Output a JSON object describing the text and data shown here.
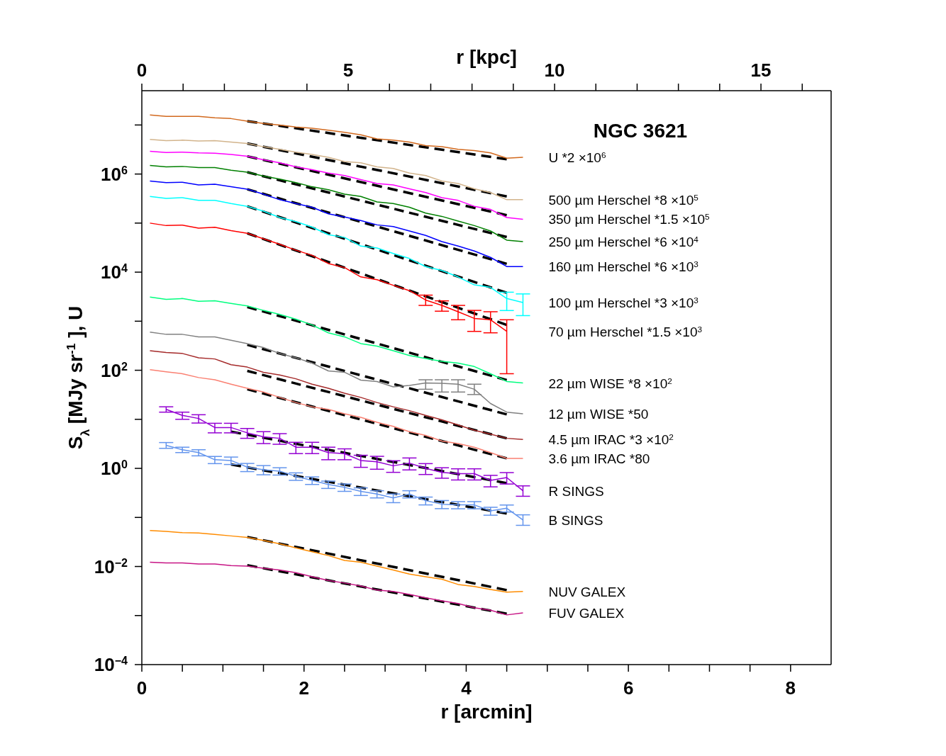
{
  "chart_data": {
    "type": "line",
    "title": "NGC 3621",
    "xlabel": "r [arcmin]",
    "x2label": "r [kpc]",
    "ylabel": "S$_{λ}$ [MJy sr$^{-1}$], U",
    "log": "y",
    "grid": false,
    "legend": false,
    "marker": "none",
    "x": [
      0.1,
      0.3,
      0.5,
      0.7,
      0.9,
      1.1,
      1.3,
      1.5,
      1.7,
      1.9,
      2.1,
      2.3,
      2.5,
      2.7,
      2.9,
      3.1,
      3.3,
      3.5,
      3.7,
      3.9,
      4.1,
      4.3,
      4.5,
      4.7
    ],
    "xlim": [
      0,
      8.5
    ],
    "xticks": [
      0,
      {
        "value": 0.5,
        "label": null
      },
      {
        "value": 1,
        "label": null
      },
      {
        "value": 1.5,
        "label": null
      },
      2,
      {
        "value": 2.5,
        "label": null
      },
      {
        "value": 3,
        "label": null
      },
      {
        "value": 3.5,
        "label": null
      },
      4,
      {
        "value": 4.5,
        "label": null
      },
      {
        "value": 5,
        "label": null
      },
      {
        "value": 5.5,
        "label": null
      },
      6,
      {
        "value": 6.5,
        "label": null
      },
      {
        "value": 7,
        "label": null
      },
      {
        "value": 7.5,
        "label": null
      },
      8
    ],
    "x2lim": [
      0,
      16.7
    ],
    "x2ticks": [
      0,
      {
        "value": 1,
        "label": null
      },
      {
        "value": 2,
        "label": null
      },
      {
        "value": 3,
        "label": null
      },
      {
        "value": 4,
        "label": null
      },
      5,
      {
        "value": 6,
        "label": null
      },
      {
        "value": 7,
        "label": null
      },
      {
        "value": 8,
        "label": null
      },
      {
        "value": 9,
        "label": null
      },
      10,
      {
        "value": 11,
        "label": null
      },
      {
        "value": 12,
        "label": null
      },
      {
        "value": 13,
        "label": null
      },
      {
        "value": 14,
        "label": null
      },
      15,
      {
        "value": 16,
        "label": null
      }
    ],
    "ylim": [
      0.0001,
      50000000
    ],
    "yticks": [
      {
        "value": 0.0001,
        "label": "10$^{−4}$"
      },
      {
        "value": 0.001,
        "label": null
      },
      {
        "value": 0.01,
        "label": "10$^{−2}$"
      },
      {
        "value": 0.1,
        "label": null
      },
      {
        "value": 1,
        "label": "10$^{0}$"
      },
      {
        "value": 10,
        "label": null
      },
      {
        "value": 100,
        "label": "10$^{2}$"
      },
      {
        "value": 1000,
        "label": null
      },
      {
        "value": 10000,
        "label": "10$^{4}$"
      },
      {
        "value": 100000,
        "label": null
      },
      {
        "value": 1000000,
        "label": "10$^{6}$"
      },
      {
        "value": 10000000,
        "label": null
      }
    ],
    "series": [
      {
        "name": "U *2 ×10$^{6}$",
        "color": "#d2691e",
        "values": [
          16000000.0,
          15000000.0,
          15000000.0,
          15000000.0,
          14000000.0,
          13500000.0,
          12000000.0,
          10700000.0,
          10000000.0,
          9100000.0,
          8600000.0,
          7800000.0,
          7100000.0,
          6300000.0,
          5200000.0,
          4900000.0,
          4500000.0,
          3800000.0,
          3600000.0,
          3200000.0,
          3000000.0,
          2700000.0,
          2100000.0,
          2200000.0
        ]
      },
      {
        "name": "500 µm Herschel *8 ×10$^{5}$",
        "color": "#d2b48c",
        "values": [
          5100000.0,
          4800000.0,
          4900000.0,
          4700000.0,
          4800000.0,
          4500000.0,
          4200000.0,
          3600000.0,
          3200000.0,
          2800000.0,
          2500000.0,
          2200000.0,
          1800000.0,
          1700000.0,
          1400000.0,
          1300000.0,
          1050000.0,
          930000.0,
          720000.0,
          640000.0,
          500000.0,
          420000.0,
          300000.0,
          300000.0
        ]
      },
      {
        "name": "350 µm Herschel *1.5 ×10$^{5}$",
        "color": "#ff00ff",
        "values": [
          2900000.0,
          2750000.0,
          2800000.0,
          2700000.0,
          2650000.0,
          2500000.0,
          2300000.0,
          1950000.0,
          1700000.0,
          1400000.0,
          1230000.0,
          1050000.0,
          930000.0,
          770000.0,
          640000.0,
          600000.0,
          500000.0,
          420000.0,
          330000.0,
          290000.0,
          220000.0,
          190000.0,
          130000.0,
          120000.0
        ]
      },
      {
        "name": "250 µm Herschel *6 ×10$^{4}$",
        "color": "#008000",
        "values": [
          1500000.0,
          1400000.0,
          1430000.0,
          1350000.0,
          1350000.0,
          1200000.0,
          1090000.0,
          910000.0,
          790000.0,
          670000.0,
          550000.0,
          480000.0,
          390000.0,
          350000.0,
          270000.0,
          250000.0,
          210000.0,
          160000.0,
          137000.0,
          110000.0,
          89000.0,
          69000.0,
          45000.0,
          42000.0
        ]
      },
      {
        "name": "160 µm Herschel *6 ×10$^{3}$",
        "color": "#0000ff",
        "values": [
          720000.0,
          670000.0,
          680000.0,
          600000.0,
          620000.0,
          550000.0,
          490000.0,
          390000.0,
          300000.0,
          250000.0,
          210000.0,
          155000.0,
          133000.0,
          113000.0,
          92000.0,
          85000.0,
          69000.0,
          56000.0,
          42000.0,
          34000.0,
          27000.0,
          20000.0,
          13000.0,
          13000.0
        ]
      },
      {
        "name": "100 µm Herschel *3 ×10$^{3}$",
        "color": "#00ffff",
        "values": [
          350000.0,
          320000.0,
          330000.0,
          290000.0,
          290000.0,
          250000.0,
          220000.0,
          175000.0,
          130000.0,
          107000.0,
          83000.0,
          58000.0,
          51000.0,
          34000.0,
          31000.0,
          24000.0,
          19000.0,
          13000.0,
          10800.0,
          8000.0,
          5500.0,
          4900.0,
          2900.0,
          2400.0
        ],
        "errors": [
          null,
          null,
          null,
          null,
          null,
          null,
          null,
          null,
          null,
          null,
          null,
          null,
          null,
          null,
          null,
          null,
          null,
          null,
          null,
          null,
          null,
          null,
          [
            1650,
            3900
          ],
          [
            1300,
            3600
          ]
        ]
      },
      {
        "name": "70 µm Herschel *1.5 ×10$^{3}$",
        "color": "#ff0000",
        "values": [
          100000.0,
          89000.0,
          91000.0,
          79000.0,
          82000.0,
          70000.0,
          62000.0,
          48000.0,
          37000.0,
          28000.0,
          22000.0,
          15000.0,
          12400.0,
          8000.0,
          7000.0,
          5400.0,
          4200.0,
          2700.0,
          2100.0,
          1560,
          1140,
          1070,
          620,
          null
        ],
        "errors": [
          null,
          null,
          null,
          null,
          null,
          null,
          null,
          null,
          null,
          null,
          null,
          null,
          null,
          null,
          null,
          null,
          null,
          [
            2100,
            3400
          ],
          [
            1600,
            2600
          ],
          [
            1070,
            2100
          ],
          [
            620,
            1660
          ],
          [
            580,
            1560
          ],
          [
            85,
            1070
          ],
          null
        ]
      },
      {
        "name": "22 µm WISE *8 ×10$^{2}$",
        "color": "#00ff7f",
        "values": [
          3100,
          2800,
          2900,
          2550,
          2600,
          2300,
          2050,
          1660,
          1380,
          1100,
          840,
          580,
          480,
          350,
          310,
          250,
          200,
          173,
          152,
          140,
          119,
          85,
          59,
          55
        ]
      },
      {
        "name": "12 µm WISE *50",
        "color": "#808080",
        "values": [
          600,
          540,
          540,
          480,
          480,
          410,
          350,
          290,
          220,
          180,
          140,
          97,
          91,
          63,
          59,
          46,
          49,
          55,
          54,
          52,
          41,
          21,
          14,
          13
        ],
        "errors": [
          null,
          null,
          null,
          null,
          null,
          null,
          null,
          null,
          null,
          null,
          null,
          null,
          null,
          null,
          null,
          null,
          null,
          [
            41,
            64
          ],
          [
            36,
            64
          ],
          [
            36,
            64
          ],
          [
            32,
            52
          ],
          null,
          null,
          null
        ]
      },
      {
        "name": "4.5 µm IRAC *3 ×10$^{2}$",
        "color": "#a52a2a",
        "values": [
          250,
          230,
          220,
          180,
          170,
          130,
          116,
          91,
          80,
          67,
          52,
          43,
          34,
          28,
          22,
          18,
          15,
          12,
          9.8,
          7.7,
          6.0,
          5.0,
          4.1,
          3.9
        ]
      },
      {
        "name": "3.6 µm IRAC *80",
        "color": "#fa8072",
        "values": [
          103,
          93,
          85,
          71,
          64,
          52,
          43,
          36,
          28,
          22,
          18,
          16,
          13,
          11,
          8.7,
          7.2,
          5.6,
          4.7,
          3.6,
          3.2,
          2.7,
          2.1,
          1.6,
          1.6
        ]
      },
      {
        "name": "R SINGS",
        "color": "#9400d3",
        "values": [
          null,
          16,
          12,
          10.4,
          6.8,
          6.8,
          5.3,
          4.4,
          4.1,
          2.7,
          2.7,
          2.1,
          2.0,
          1.45,
          1.36,
          1.13,
          1.28,
          1.0,
          0.83,
          0.78,
          0.78,
          0.57,
          0.65,
          0.35
        ],
        "errors": [
          null,
          2,
          2,
          2,
          1.5,
          1.5,
          1.2,
          1.2,
          1,
          0.7,
          0.7,
          0.6,
          0.5,
          0.4,
          0.4,
          0.3,
          0.35,
          0.25,
          0.2,
          0.2,
          0.2,
          0.15,
          0.17,
          [
            0.27,
            0.44
          ]
        ]
      },
      {
        "name": "B SINGS",
        "color": "#6495ed",
        "values": [
          null,
          2.96,
          2.4,
          2.1,
          1.5,
          1.45,
          1.06,
          0.94,
          0.88,
          0.69,
          0.57,
          0.47,
          0.41,
          0.34,
          0.3,
          0.25,
          0.3,
          0.22,
          0.186,
          0.18,
          0.18,
          0.136,
          0.154,
          0.089
        ],
        "errors": [
          null,
          0.4,
          0.3,
          0.3,
          0.25,
          0.25,
          0.2,
          0.2,
          0.15,
          0.12,
          0.1,
          0.08,
          0.07,
          0.06,
          0.05,
          0.05,
          0.05,
          0.04,
          0.035,
          0.03,
          0.03,
          0.025,
          0.025,
          [
            0.069,
            0.113
          ]
        ]
      },
      {
        "name": "NUV GALEX",
        "color": "#ff8c00",
        "values": [
          0.054,
          0.052,
          0.049,
          0.048,
          0.045,
          0.042,
          0.039,
          0.034,
          0.029,
          0.024,
          0.02,
          0.0167,
          0.0133,
          0.0122,
          0.0102,
          0.0085,
          0.007,
          0.0062,
          0.0055,
          0.0043,
          0.0039,
          0.0034,
          0.003,
          0.0031
        ]
      },
      {
        "name": "FUV GALEX",
        "color": "#c71585",
        "values": [
          0.0122,
          0.0118,
          0.0118,
          0.0112,
          0.0112,
          0.0104,
          0.0102,
          0.0092,
          0.0085,
          0.0075,
          0.0062,
          0.0052,
          0.0046,
          0.004,
          0.0033,
          0.0031,
          0.0027,
          0.0023,
          0.002,
          0.00176,
          0.00144,
          0.00128,
          0.00103,
          0.00113
        ]
      },
      {
        "type": "line",
        "color": "#000000",
        "line_style": "dashed",
        "x": [
          1.3,
          4.5
        ],
        "values": [
          12000000.0,
          2000000.0
        ]
      },
      {
        "type": "line",
        "color": "#000000",
        "line_style": "dashed",
        "x": [
          1.3,
          4.5
        ],
        "values": [
          4200000.0,
          350000.0
        ]
      },
      {
        "type": "line",
        "color": "#000000",
        "line_style": "dashed",
        "x": [
          1.3,
          4.5
        ],
        "values": [
          2300000.0,
          145000.0
        ]
      },
      {
        "type": "line",
        "color": "#000000",
        "line_style": "dashed",
        "x": [
          1.3,
          4.5
        ],
        "values": [
          1090000.0,
          52000.0
        ]
      },
      {
        "type": "line",
        "color": "#000000",
        "line_style": "dashed",
        "x": [
          1.3,
          4.5
        ],
        "values": [
          490000.0,
          14800.0
        ]
      },
      {
        "type": "line",
        "color": "#000000",
        "line_style": "dashed",
        "x": [
          1.3,
          4.5
        ],
        "values": [
          220000.0,
          3800
        ]
      },
      {
        "type": "line",
        "color": "#000000",
        "line_style": "dashed",
        "x": [
          1.3,
          4.5
        ],
        "values": [
          62000.0,
          840
        ]
      },
      {
        "type": "line",
        "color": "#000000",
        "line_style": "dashed",
        "x": [
          1.3,
          4.5
        ],
        "values": [
          1950,
          63
        ]
      },
      {
        "type": "line",
        "color": "#000000",
        "line_style": "dashed",
        "x": [
          1.3,
          4.5
        ],
        "values": [
          330,
          12.6
        ]
      },
      {
        "type": "line",
        "color": "#000000",
        "line_style": "dashed",
        "x": [
          1.3,
          4.5
        ],
        "values": [
          97,
          4.1
        ]
      },
      {
        "type": "line",
        "color": "#000000",
        "line_style": "dashed",
        "x": [
          1.3,
          4.5
        ],
        "values": [
          41,
          1.6
        ]
      },
      {
        "type": "line",
        "color": "#000000",
        "line_style": "dashed",
        "x": [
          1.1,
          4.5
        ],
        "values": [
          5.6,
          0.5
        ]
      },
      {
        "type": "line",
        "color": "#000000",
        "line_style": "dashed",
        "x": [
          1.1,
          4.5
        ],
        "values": [
          1.2,
          0.12
        ]
      },
      {
        "type": "line",
        "color": "#000000",
        "line_style": "dashed",
        "x": [
          1.3,
          4.5
        ],
        "values": [
          0.04,
          0.0033
        ]
      },
      {
        "type": "line",
        "color": "#000000",
        "line_style": "dashed",
        "x": [
          1.3,
          4.5
        ],
        "values": [
          0.0106,
          0.00109
        ]
      }
    ]
  }
}
